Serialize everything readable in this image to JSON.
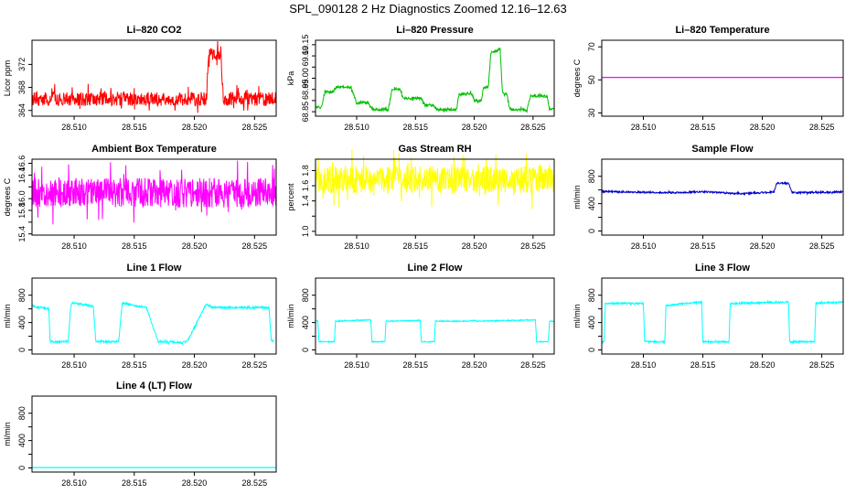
{
  "figure": {
    "title": "SPL_090128  2 Hz Diagnostics Zoomed 12.16–12.63"
  },
  "chart_data": [
    {
      "type": "line",
      "title": "Li–820 CO2",
      "ylabel": "Licor ppm",
      "xlabel": "",
      "color": "#ff0000",
      "xlim": [
        28.5065,
        28.5268
      ],
      "ylim": [
        363,
        376.2
      ],
      "x_ticks": [
        "28.510",
        "28.515",
        "28.520",
        "28.525"
      ],
      "y_ticks": [
        364,
        368,
        372
      ],
      "x": [
        28.5065,
        28.521,
        28.5212,
        28.5222,
        28.5224,
        28.5268
      ],
      "y": [
        366,
        366,
        374,
        374,
        366,
        366
      ],
      "noise": 1.2
    },
    {
      "type": "line",
      "title": "Li–820 Pressure",
      "ylabel": "kPa",
      "xlabel": "",
      "color": "#00c000",
      "xlim": [
        28.5065,
        28.5268
      ],
      "ylim": [
        68.83,
        69.17
      ],
      "x_ticks": [
        "28.510",
        "28.515",
        "28.520",
        "28.525"
      ],
      "y_ticks": [
        68.85,
        68.9,
        68.95,
        69.0,
        69.05,
        69.1,
        69.15
      ],
      "y_tick_labels": [
        "68.85",
        "",
        "68.95",
        "69.00",
        "",
        "69.10",
        "69.15"
      ],
      "x": [
        28.5065,
        28.507,
        28.5073,
        28.508,
        28.5083,
        28.5095,
        28.51,
        28.511,
        28.5113,
        28.5127,
        28.513,
        28.5137,
        28.514,
        28.5155,
        28.5158,
        28.5165,
        28.5168,
        28.5185,
        28.5187,
        28.5198,
        28.52,
        28.5206,
        28.5208,
        28.5212,
        28.5214,
        28.5222,
        28.5224,
        28.5228,
        28.523,
        28.5245,
        28.5248,
        28.5262,
        28.5264,
        28.5268
      ],
      "y": [
        68.87,
        68.87,
        68.94,
        68.94,
        68.96,
        68.96,
        68.89,
        68.89,
        68.86,
        68.86,
        68.95,
        68.95,
        68.91,
        68.91,
        68.88,
        68.88,
        68.86,
        68.86,
        68.93,
        68.93,
        68.9,
        68.9,
        68.96,
        68.96,
        69.11,
        69.13,
        68.93,
        68.93,
        68.86,
        68.86,
        68.92,
        68.92,
        68.86,
        68.86
      ],
      "noise": 0.006
    },
    {
      "type": "line",
      "title": "Li–820 Temperature",
      "ylabel": "degrees C",
      "xlabel": "",
      "color": "#ff00ff",
      "xlim": [
        28.5065,
        28.5268
      ],
      "ylim": [
        28,
        74
      ],
      "x_ticks": [
        "28.510",
        "28.515",
        "28.520",
        "28.525"
      ],
      "y_ticks": [
        30,
        50,
        70
      ],
      "x": [
        28.5065,
        28.5268
      ],
      "y": [
        51.5,
        51.5
      ],
      "noise": 0
    },
    {
      "type": "line",
      "title": "Ambient Box Temperature",
      "ylabel": "degrees C",
      "xlabel": "",
      "color": "#ff00ff",
      "xlim": [
        28.5065,
        28.5268
      ],
      "ylim": [
        15.38,
        16.67
      ],
      "x_ticks": [
        "28.510",
        "28.515",
        "28.520",
        "28.525"
      ],
      "y_ticks": [
        15.4,
        15.6,
        15.8,
        16.0,
        16.2,
        16.4,
        16.6
      ],
      "y_tick_labels": [
        "15.4",
        "",
        "15.8",
        "16.0",
        "",
        "16.4",
        "16.6"
      ],
      "x": [
        28.5065,
        28.5268
      ],
      "y": [
        16.1,
        16.1
      ],
      "noise": 0.25
    },
    {
      "type": "line",
      "title": "Gas Stream RH",
      "ylabel": "percent",
      "xlabel": "",
      "color": "#ffff00",
      "xlim": [
        28.5065,
        28.5268
      ],
      "ylim": [
        0.95,
        1.95
      ],
      "x_ticks": [
        "28.510",
        "28.515",
        "28.520",
        "28.525"
      ],
      "y_ticks": [
        1.0,
        1.2,
        1.4,
        1.6,
        1.8
      ],
      "y_tick_labels": [
        "1.0",
        "",
        "1.4",
        "1.6",
        "1.8"
      ],
      "x": [
        28.5065,
        28.5268
      ],
      "y": [
        1.68,
        1.68
      ],
      "noise": 0.18
    },
    {
      "type": "line",
      "title": "Sample Flow",
      "ylabel": "ml/min",
      "xlabel": "",
      "color": "#0000cc",
      "xlim": [
        28.5065,
        28.5268
      ],
      "ylim": [
        -60,
        1050
      ],
      "x_ticks": [
        "28.510",
        "28.515",
        "28.520",
        "28.525"
      ],
      "y_ticks": [
        0,
        200,
        400,
        600,
        800
      ],
      "y_tick_labels": [
        "0",
        "",
        "400",
        "",
        "800"
      ],
      "x": [
        28.5065,
        28.51,
        28.5125,
        28.515,
        28.518,
        28.52,
        28.521,
        28.5212,
        28.5222,
        28.5225,
        28.5268
      ],
      "y": [
        580,
        565,
        560,
        575,
        545,
        560,
        575,
        700,
        700,
        560,
        570
      ],
      "noise": 12
    },
    {
      "type": "line",
      "title": "Line 1 Flow",
      "ylabel": "ml/min",
      "xlabel": "",
      "color": "#00ffff",
      "xlim": [
        28.5065,
        28.5268
      ],
      "ylim": [
        -60,
        1050
      ],
      "x_ticks": [
        "28.510",
        "28.515",
        "28.520",
        "28.525"
      ],
      "y_ticks": [
        0,
        200,
        400,
        600,
        800
      ],
      "y_tick_labels": [
        "0",
        "",
        "400",
        "",
        "800"
      ],
      "x": [
        28.5065,
        28.507,
        28.5075,
        28.5079,
        28.508,
        28.509,
        28.5095,
        28.5097,
        28.5098,
        28.5114,
        28.5116,
        28.5118,
        28.512,
        28.5134,
        28.5137,
        28.514,
        28.5141,
        28.516,
        28.517,
        28.518,
        28.519,
        28.5192,
        28.5194,
        28.521,
        28.5213,
        28.5215,
        28.5262,
        28.5264,
        28.5266
      ],
      "y": [
        650,
        620,
        620,
        600,
        120,
        120,
        120,
        600,
        690,
        640,
        640,
        120,
        120,
        120,
        120,
        680,
        680,
        620,
        120,
        120,
        100,
        120,
        120,
        680,
        640,
        620,
        620,
        120,
        120
      ],
      "noise": 14
    },
    {
      "type": "line",
      "title": "Line 2 Flow",
      "ylabel": "ml/min",
      "xlabel": "",
      "color": "#00ffff",
      "xlim": [
        28.5065,
        28.5268
      ],
      "ylim": [
        -60,
        1050
      ],
      "x_ticks": [
        "28.510",
        "28.515",
        "28.520",
        "28.525"
      ],
      "y_ticks": [
        0,
        200,
        400,
        600,
        800
      ],
      "y_tick_labels": [
        "0",
        "",
        "400",
        "",
        "800"
      ],
      "x": [
        28.5065,
        28.5067,
        28.5068,
        28.5081,
        28.5082,
        28.5112,
        28.5113,
        28.5124,
        28.5125,
        28.5154,
        28.5155,
        28.5166,
        28.5167,
        28.5194,
        28.5201,
        28.5202,
        28.5252,
        28.5253,
        28.5263,
        28.5264,
        28.5268
      ],
      "y": [
        430,
        420,
        120,
        120,
        420,
        440,
        120,
        120,
        420,
        430,
        120,
        120,
        420,
        420,
        430,
        420,
        440,
        120,
        120,
        420,
        420
      ],
      "noise": 6
    },
    {
      "type": "line",
      "title": "Line 3 Flow",
      "ylabel": "ml/min",
      "xlabel": "",
      "color": "#00ffff",
      "xlim": [
        28.5065,
        28.5268
      ],
      "ylim": [
        -60,
        1050
      ],
      "x_ticks": [
        "28.510",
        "28.515",
        "28.520",
        "28.525"
      ],
      "y_ticks": [
        0,
        200,
        400,
        600,
        800
      ],
      "y_tick_labels": [
        "0",
        "",
        "400",
        "",
        "800"
      ],
      "x": [
        28.5065,
        28.5067,
        28.5068,
        28.51,
        28.5101,
        28.5118,
        28.5119,
        28.5149,
        28.515,
        28.5172,
        28.5173,
        28.5222,
        28.5223,
        28.5244,
        28.5245,
        28.5266,
        28.5268
      ],
      "y": [
        120,
        120,
        680,
        680,
        120,
        120,
        650,
        700,
        120,
        120,
        680,
        700,
        120,
        120,
        680,
        700,
        700
      ],
      "noise": 12
    },
    {
      "type": "line",
      "title": "Line 4 (LT) Flow",
      "ylabel": "ml/min",
      "xlabel": "",
      "color": "#00ffff",
      "xlim": [
        28.5065,
        28.5268
      ],
      "ylim": [
        -60,
        1050
      ],
      "x_ticks": [
        "28.510",
        "28.515",
        "28.520",
        "28.525"
      ],
      "y_ticks": [
        0,
        200,
        400,
        600,
        800
      ],
      "y_tick_labels": [
        "0",
        "",
        "400",
        "",
        "800"
      ],
      "x": [
        28.5065,
        28.5268
      ],
      "y": [
        5,
        5
      ],
      "noise": 0
    }
  ]
}
